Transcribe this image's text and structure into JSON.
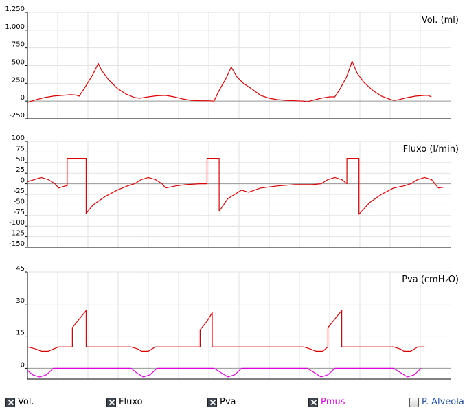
{
  "colors": {
    "signal": "#dd0000",
    "pmus": "#e000e0",
    "grid": "#e2e2e2",
    "baseline": "#9a9a9a",
    "axis": "#000000"
  },
  "chart_data": [
    {
      "type": "line",
      "title": "Vol. (ml)",
      "ylim": [
        -250,
        1250
      ],
      "yticks": [
        -250,
        0,
        250,
        500,
        750,
        1000,
        1250
      ],
      "ytick_labels": [
        "-250",
        "0",
        "250",
        "500",
        "750",
        "1.000",
        "1.250"
      ],
      "series": [
        {
          "color": "#dd0000",
          "points": [
            [
              0,
              -20
            ],
            [
              5,
              20
            ],
            [
              10,
              50
            ],
            [
              15,
              70
            ],
            [
              20,
              80
            ],
            [
              25,
              90
            ],
            [
              28,
              85
            ],
            [
              30,
              70
            ],
            [
              34,
              220
            ],
            [
              38,
              380
            ],
            [
              41,
              530
            ],
            [
              43,
              430
            ],
            [
              47,
              300
            ],
            [
              52,
              180
            ],
            [
              57,
              100
            ],
            [
              62,
              50
            ],
            [
              65,
              40
            ],
            [
              70,
              60
            ],
            [
              75,
              75
            ],
            [
              80,
              80
            ],
            [
              85,
              60
            ],
            [
              90,
              30
            ],
            [
              95,
              10
            ],
            [
              100,
              5
            ],
            [
              105,
              5
            ],
            [
              108,
              0
            ],
            [
              111,
              150
            ],
            [
              115,
              320
            ],
            [
              118,
              480
            ],
            [
              121,
              350
            ],
            [
              125,
              250
            ],
            [
              130,
              170
            ],
            [
              135,
              80
            ],
            [
              140,
              40
            ],
            [
              145,
              20
            ],
            [
              150,
              10
            ],
            [
              155,
              5
            ],
            [
              160,
              0
            ],
            [
              162,
              -10
            ],
            [
              165,
              10
            ],
            [
              170,
              40
            ],
            [
              175,
              60
            ],
            [
              178,
              60
            ],
            [
              181,
              170
            ],
            [
              185,
              350
            ],
            [
              188,
              560
            ],
            [
              191,
              390
            ],
            [
              195,
              260
            ],
            [
              200,
              150
            ],
            [
              205,
              70
            ],
            [
              210,
              25
            ],
            [
              212,
              10
            ],
            [
              215,
              20
            ],
            [
              220,
              50
            ],
            [
              225,
              70
            ],
            [
              230,
              80
            ],
            [
              232,
              80
            ],
            [
              234,
              60
            ]
          ]
        }
      ]
    },
    {
      "type": "line",
      "title": "Fluxo (l/min)",
      "ylim": [
        -150,
        100
      ],
      "yticks": [
        -150,
        -125,
        -100,
        -75,
        -50,
        -25,
        0,
        25,
        50,
        75,
        100
      ],
      "ytick_labels": [
        "-150",
        "-125",
        "-100",
        "-75",
        "-50",
        "-25",
        "0",
        "25",
        "50",
        "75",
        "100"
      ],
      "series": [
        {
          "color": "#dd0000",
          "points": [
            [
              0,
              5
            ],
            [
              4,
              10
            ],
            [
              8,
              15
            ],
            [
              12,
              10
            ],
            [
              16,
              0
            ],
            [
              18,
              -10
            ],
            [
              22,
              -5
            ],
            [
              23,
              -5
            ],
            [
              23,
              60
            ],
            [
              34,
              60
            ],
            [
              34,
              -70
            ],
            [
              38,
              -50
            ],
            [
              45,
              -30
            ],
            [
              52,
              -15
            ],
            [
              58,
              -5
            ],
            [
              62,
              0
            ],
            [
              66,
              10
            ],
            [
              70,
              15
            ],
            [
              74,
              10
            ],
            [
              78,
              0
            ],
            [
              80,
              -10
            ],
            [
              86,
              -5
            ],
            [
              92,
              -2
            ],
            [
              100,
              0
            ],
            [
              104,
              0
            ],
            [
              104,
              60
            ],
            [
              111,
              60
            ],
            [
              111,
              -65
            ],
            [
              116,
              -35
            ],
            [
              120,
              -25
            ],
            [
              124,
              -15
            ],
            [
              128,
              -20
            ],
            [
              135,
              -10
            ],
            [
              145,
              -5
            ],
            [
              155,
              -2
            ],
            [
              165,
              -2
            ],
            [
              170,
              0
            ],
            [
              174,
              10
            ],
            [
              178,
              15
            ],
            [
              182,
              10
            ],
            [
              185,
              0
            ],
            [
              185,
              60
            ],
            [
              192,
              60
            ],
            [
              192,
              -72
            ],
            [
              198,
              -45
            ],
            [
              205,
              -25
            ],
            [
              212,
              -10
            ],
            [
              218,
              -5
            ],
            [
              222,
              0
            ],
            [
              226,
              10
            ],
            [
              230,
              15
            ],
            [
              234,
              10
            ],
            [
              236,
              0
            ],
            [
              238,
              -10
            ],
            [
              241,
              -8
            ]
          ]
        }
      ]
    },
    {
      "type": "line",
      "title": "Pva (cmH₂O)",
      "ylim": [
        -5,
        45
      ],
      "yticks": [
        0,
        15,
        30,
        45
      ],
      "ytick_labels": [
        "0",
        "15",
        "30",
        "45"
      ],
      "series": [
        {
          "color": "#dd0000",
          "points": [
            [
              0,
              10
            ],
            [
              5,
              9
            ],
            [
              8,
              8
            ],
            [
              12,
              8
            ],
            [
              15,
              9
            ],
            [
              18,
              10
            ],
            [
              26,
              10
            ],
            [
              26,
              19
            ],
            [
              30,
              23
            ],
            [
              34,
              27
            ],
            [
              34,
              10
            ],
            [
              60,
              10
            ],
            [
              64,
              9
            ],
            [
              66,
              8
            ],
            [
              70,
              8
            ],
            [
              74,
              10
            ],
            [
              100,
              10
            ],
            [
              100,
              18
            ],
            [
              104,
              22
            ],
            [
              107,
              26
            ],
            [
              107,
              10
            ],
            [
              160,
              10
            ],
            [
              164,
              9
            ],
            [
              167,
              8
            ],
            [
              171,
              8
            ],
            [
              174,
              10
            ],
            [
              174,
              19
            ],
            [
              178,
              23
            ],
            [
              182,
              27
            ],
            [
              182,
              10
            ],
            [
              212,
              10
            ],
            [
              216,
              9
            ],
            [
              218,
              8
            ],
            [
              222,
              8
            ],
            [
              226,
              10
            ],
            [
              230,
              10
            ]
          ]
        },
        {
          "color": "#e000e0",
          "points": [
            [
              0,
              -1
            ],
            [
              3,
              -3
            ],
            [
              7,
              -4
            ],
            [
              11,
              -3
            ],
            [
              15,
              0
            ],
            [
              60,
              0
            ],
            [
              63,
              -2
            ],
            [
              67,
              -4
            ],
            [
              71,
              -3
            ],
            [
              75,
              0
            ],
            [
              108,
              0
            ],
            [
              112,
              -2
            ],
            [
              116,
              -4
            ],
            [
              120,
              -3
            ],
            [
              124,
              0
            ],
            [
              162,
              0
            ],
            [
              166,
              -2
            ],
            [
              170,
              -4
            ],
            [
              174,
              -3
            ],
            [
              178,
              0
            ],
            [
              212,
              0
            ],
            [
              216,
              -2
            ],
            [
              220,
              -4
            ],
            [
              224,
              -3
            ],
            [
              228,
              0
            ]
          ]
        }
      ]
    }
  ],
  "legend": [
    {
      "label": "Vol.",
      "checked": true,
      "color": "#000000"
    },
    {
      "label": "Fluxo",
      "checked": true,
      "color": "#000000"
    },
    {
      "label": "Pva",
      "checked": true,
      "color": "#000000"
    },
    {
      "label": "Pmus",
      "checked": true,
      "color": "#e000e0"
    },
    {
      "label": "P. Alveola",
      "checked": false,
      "color": "#1a4fb8"
    }
  ]
}
